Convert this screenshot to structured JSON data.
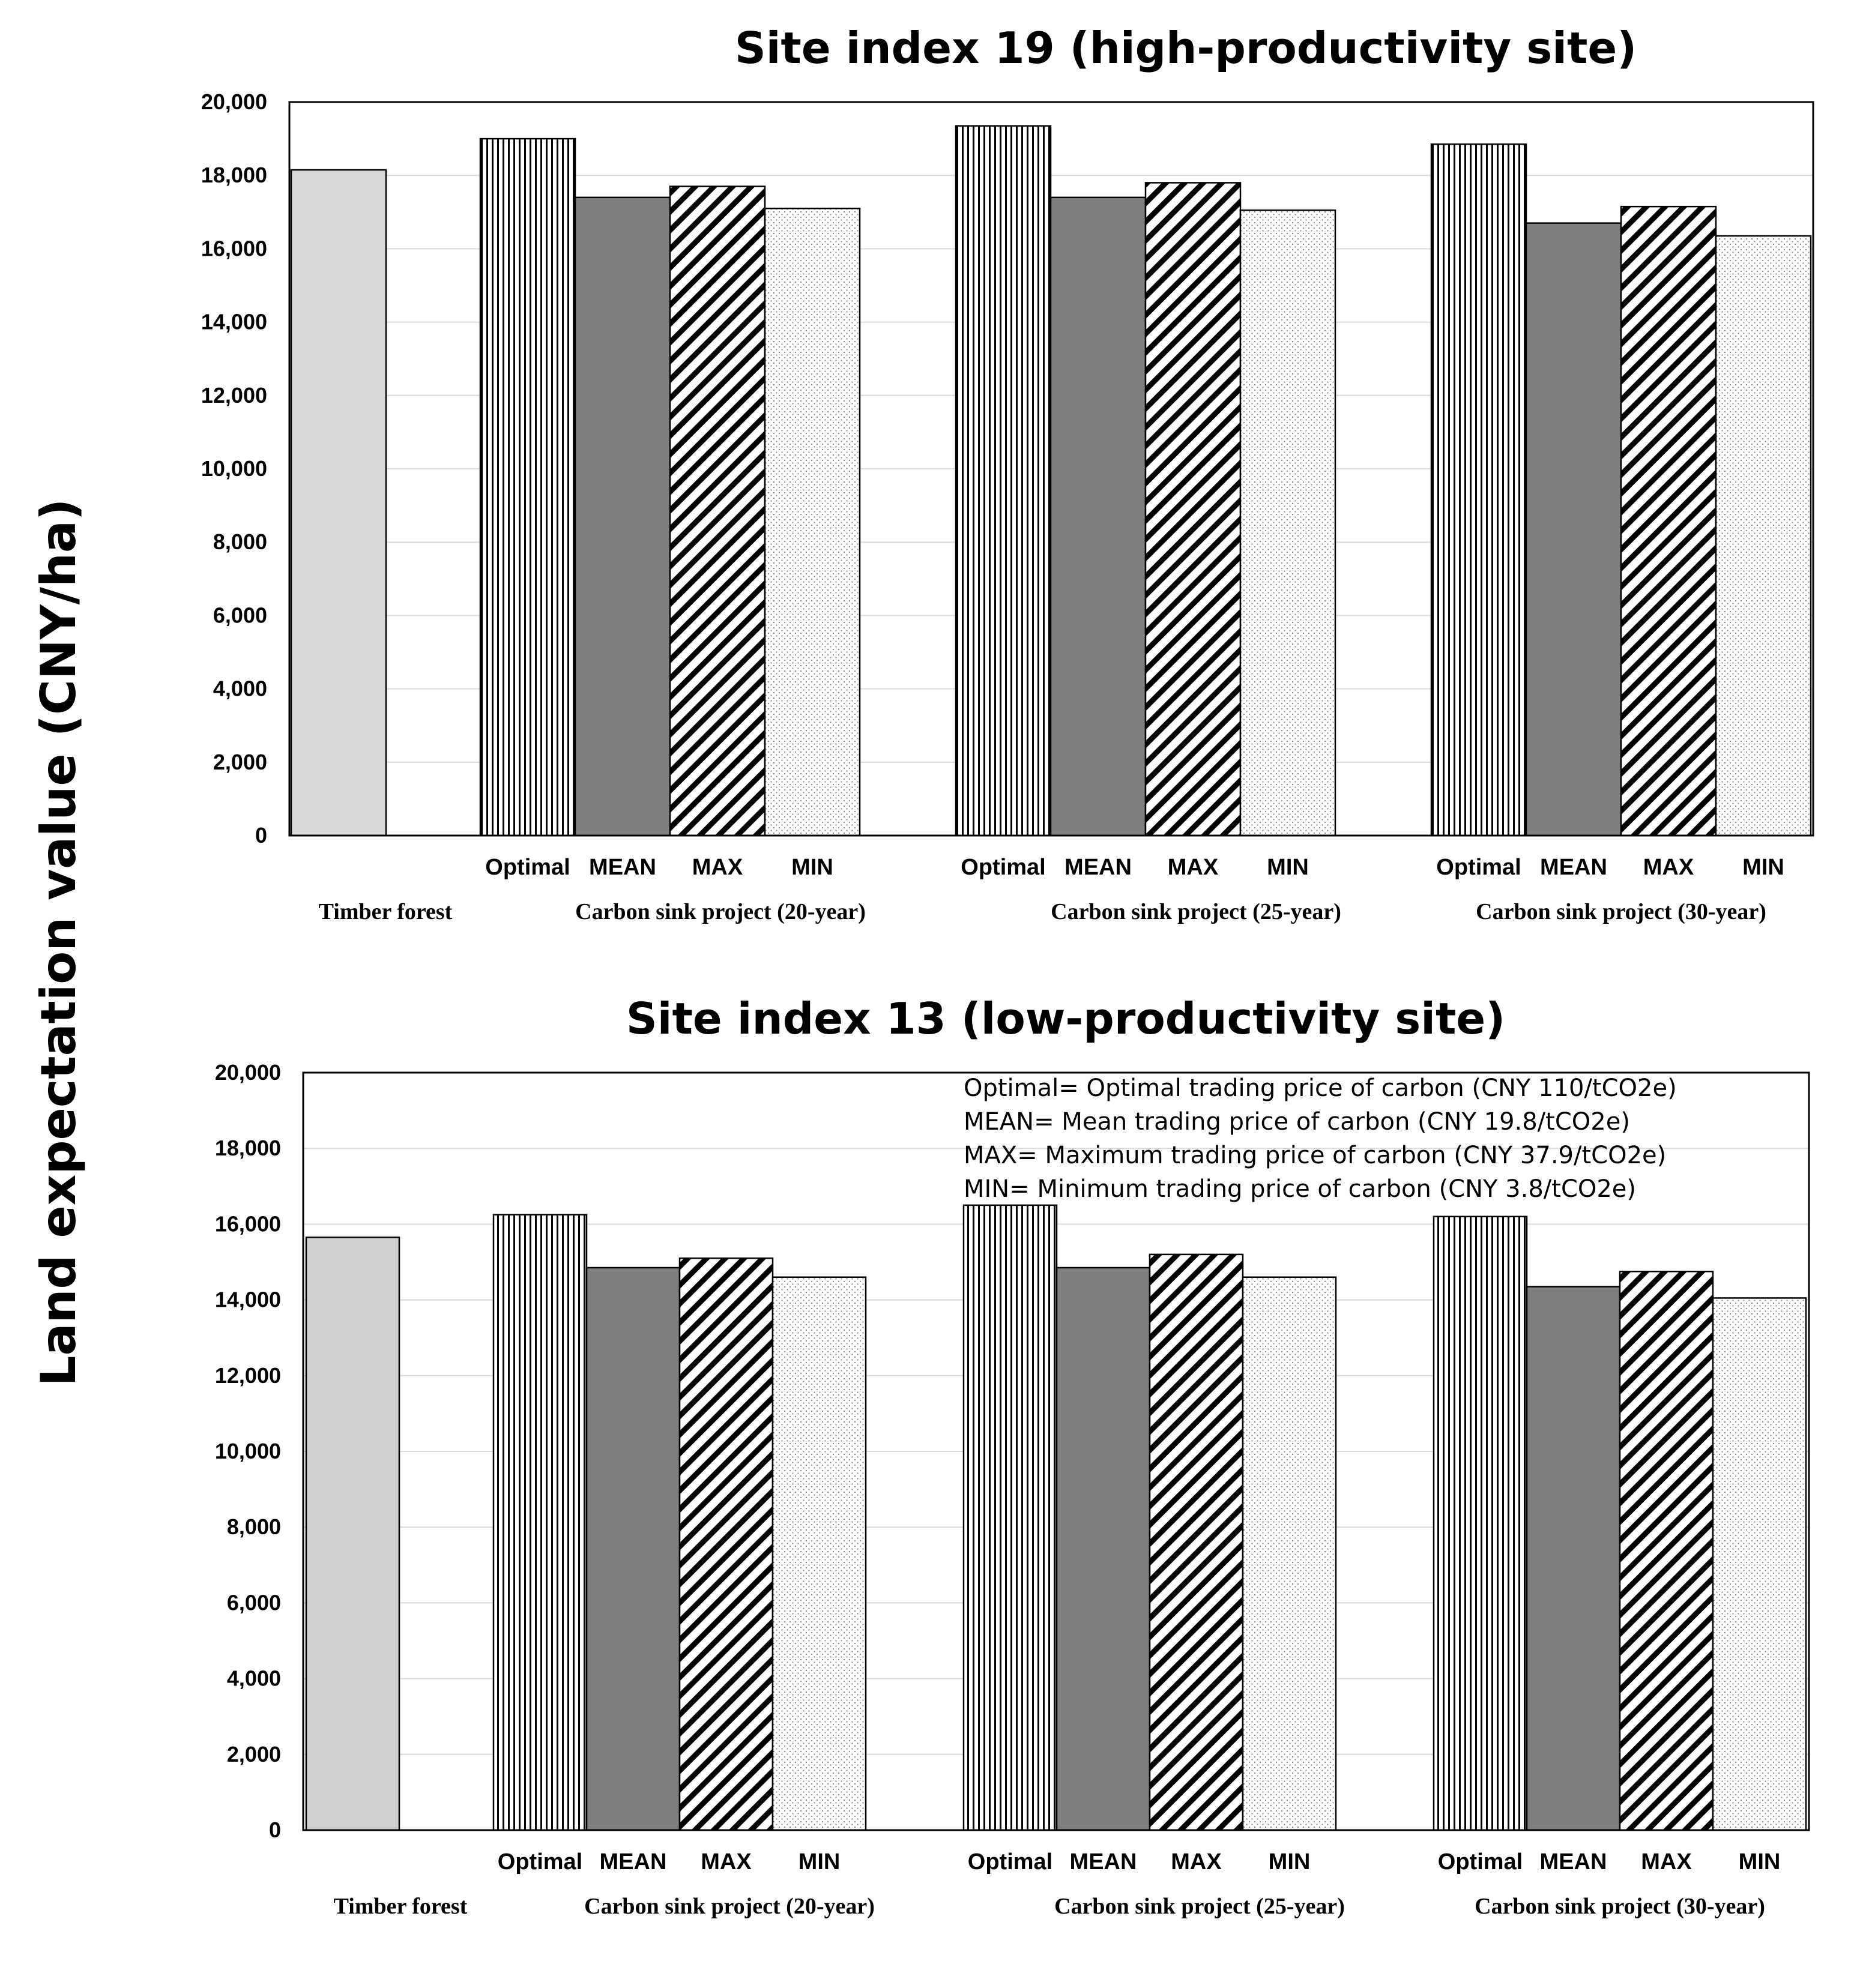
{
  "figure": {
    "y_axis_label": "Land expectation value (CNY/ha)"
  },
  "chart_data": [
    {
      "type": "bar",
      "title": "Site index 19 (high-productivity site)",
      "ylabel": "Land expectation value (CNY/ha)",
      "ylim": [
        0,
        20000
      ],
      "yticks": [
        "0",
        "2,000",
        "4,000",
        "6,000",
        "8,000",
        "10,000",
        "12,000",
        "14,000",
        "16,000",
        "18,000",
        "20,000"
      ],
      "grid": true,
      "groups": [
        {
          "label": "Timber forest",
          "bars": [
            {
              "name": "",
              "value": 18150,
              "pattern": "timber"
            }
          ]
        },
        {
          "label": "Carbon sink project (20-year)",
          "bars": [
            {
              "name": "Optimal",
              "value": 19000,
              "pattern": "vertical"
            },
            {
              "name": "MEAN",
              "value": 17400,
              "pattern": "solid"
            },
            {
              "name": "MAX",
              "value": 17700,
              "pattern": "diagonal"
            },
            {
              "name": "MIN",
              "value": 17100,
              "pattern": "dots"
            }
          ]
        },
        {
          "label": "Carbon sink project (25-year)",
          "bars": [
            {
              "name": "Optimal",
              "value": 19350,
              "pattern": "vertical"
            },
            {
              "name": "MEAN",
              "value": 17400,
              "pattern": "solid"
            },
            {
              "name": "MAX",
              "value": 17800,
              "pattern": "diagonal"
            },
            {
              "name": "MIN",
              "value": 17050,
              "pattern": "dots"
            }
          ]
        },
        {
          "label": "Carbon sink project (30-year)",
          "bars": [
            {
              "name": "Optimal",
              "value": 18850,
              "pattern": "vertical"
            },
            {
              "name": "MEAN",
              "value": 16700,
              "pattern": "solid"
            },
            {
              "name": "MAX",
              "value": 17150,
              "pattern": "diagonal"
            },
            {
              "name": "MIN",
              "value": 16350,
              "pattern": "dots"
            }
          ]
        }
      ]
    },
    {
      "type": "bar",
      "title": "Site index 13 (low-productivity site)",
      "ylabel": "Land expectation value (CNY/ha)",
      "ylim": [
        0,
        20000
      ],
      "yticks": [
        "0",
        "2,000",
        "4,000",
        "6,000",
        "8,000",
        "10,000",
        "12,000",
        "14,000",
        "16,000",
        "18,000",
        "20,000"
      ],
      "grid": true,
      "annotations": [
        "Optimal= Optimal trading price of carbon (CNY 110/tCO2e)",
        "MEAN= Mean trading price of carbon (CNY 19.8/tCO2e)",
        "MAX= Maximum trading price of carbon (CNY 37.9/tCO2e)",
        "MIN= Minimum trading price of carbon (CNY 3.8/tCO2e)"
      ],
      "groups": [
        {
          "label": "Timber forest",
          "bars": [
            {
              "name": "",
              "value": 15650,
              "pattern": "timber"
            }
          ]
        },
        {
          "label": "Carbon sink project (20-year)",
          "bars": [
            {
              "name": "Optimal",
              "value": 16250,
              "pattern": "vertical"
            },
            {
              "name": "MEAN",
              "value": 14850,
              "pattern": "solid"
            },
            {
              "name": "MAX",
              "value": 15100,
              "pattern": "diagonal"
            },
            {
              "name": "MIN",
              "value": 14600,
              "pattern": "dots"
            }
          ]
        },
        {
          "label": "Carbon sink project (25-year)",
          "bars": [
            {
              "name": "Optimal",
              "value": 16500,
              "pattern": "vertical"
            },
            {
              "name": "MEAN",
              "value": 14850,
              "pattern": "solid"
            },
            {
              "name": "MAX",
              "value": 15200,
              "pattern": "diagonal"
            },
            {
              "name": "MIN",
              "value": 14600,
              "pattern": "dots"
            }
          ]
        },
        {
          "label": "Carbon sink project (30-year)",
          "bars": [
            {
              "name": "Optimal",
              "value": 16200,
              "pattern": "vertical"
            },
            {
              "name": "MEAN",
              "value": 14350,
              "pattern": "solid"
            },
            {
              "name": "MAX",
              "value": 14750,
              "pattern": "diagonal"
            },
            {
              "name": "MIN",
              "value": 14050,
              "pattern": "dots"
            }
          ]
        }
      ]
    }
  ]
}
